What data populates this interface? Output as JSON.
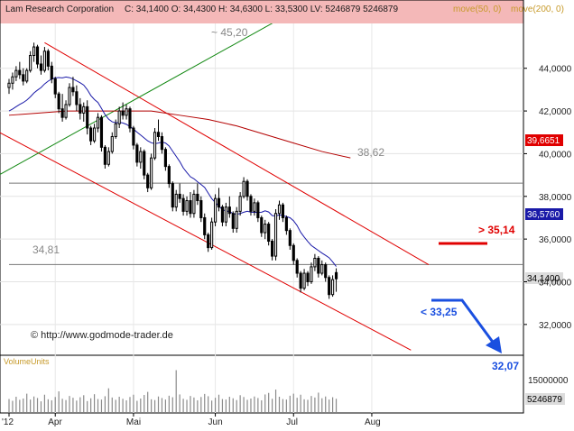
{
  "header": {
    "title": "Lam Research Corporation",
    "quote": "C: 34,1400  O: 34,4300  H: 34,6300  L: 33,5300  LV: 5246879  5246879",
    "ma_labels": [
      "move(50, 0)",
      "move(200, 0)"
    ]
  },
  "volume_panel": {
    "title": "VolumeUnits",
    "tick_label": "15000000",
    "last_volume_label": "5246879"
  },
  "annotations": {
    "peak": "~ 45,20",
    "resistance_h": "38,62",
    "support_h": "34,81",
    "breakout": "> 35,14",
    "breakdown": "< 33,25",
    "target": "32,07",
    "copyright": "© http://www.godmode-trader.de"
  },
  "colors": {
    "candle": "#000000",
    "ma50": "#1a1aa8",
    "ma200": "#b30000",
    "channel": "#e00000",
    "uptrend": "#118811",
    "hline": "#777777",
    "breakout_mark": "#e00000",
    "arrow": "#1a4fe0",
    "header_bg": "#f4b8b8"
  },
  "chart_data": {
    "type": "candlestick",
    "symbol": "Lam Research Corporation",
    "last": {
      "close": 34.14,
      "open": 34.43,
      "high": 34.63,
      "low": 33.53,
      "volume": 5246879
    },
    "y_axis": {
      "ticks": [
        32,
        34,
        36,
        38,
        40,
        42,
        44
      ],
      "tick_labels": [
        "32,0000",
        "34,0000",
        "36,0000",
        "38,0000",
        "40,0000",
        "42,0000",
        "44,0000"
      ],
      "ylim": [
        30.6,
        46.1
      ]
    },
    "x_axis": {
      "labels": [
        "'12",
        "Apr",
        "Mai",
        "Jun",
        "Jul",
        "Aug"
      ],
      "label_bar": [
        0,
        13,
        35,
        58,
        80,
        102
      ],
      "bar_range": [
        0,
        118
      ]
    },
    "candles": [
      [
        43.1,
        43.5,
        42.8,
        43.3
      ],
      [
        43.3,
        43.8,
        43.0,
        43.6
      ],
      [
        43.6,
        44.1,
        43.4,
        43.9
      ],
      [
        43.9,
        44.3,
        43.5,
        43.7
      ],
      [
        43.7,
        44.0,
        43.2,
        43.4
      ],
      [
        43.4,
        44.0,
        43.3,
        43.9
      ],
      [
        43.9,
        44.8,
        43.8,
        44.6
      ],
      [
        44.6,
        45.2,
        44.3,
        45.0
      ],
      [
        45.0,
        45.1,
        44.0,
        44.2
      ],
      [
        44.2,
        44.6,
        43.7,
        43.9
      ],
      [
        43.9,
        45.0,
        43.8,
        44.8
      ],
      [
        44.8,
        44.9,
        43.9,
        44.1
      ],
      [
        44.1,
        44.3,
        43.3,
        43.5
      ],
      [
        43.5,
        43.6,
        42.6,
        42.8
      ],
      [
        42.8,
        42.9,
        41.9,
        42.1
      ],
      [
        42.1,
        42.8,
        41.5,
        41.7
      ],
      [
        41.7,
        42.5,
        41.6,
        42.3
      ],
      [
        42.3,
        43.3,
        42.2,
        43.1
      ],
      [
        43.1,
        43.6,
        42.7,
        42.9
      ],
      [
        42.9,
        43.2,
        42.0,
        42.3
      ],
      [
        42.3,
        42.6,
        41.6,
        41.9
      ],
      [
        41.9,
        42.4,
        41.5,
        42.2
      ],
      [
        42.2,
        42.5,
        40.9,
        41.2
      ],
      [
        41.2,
        41.3,
        40.4,
        40.6
      ],
      [
        40.6,
        41.4,
        40.5,
        41.2
      ],
      [
        41.2,
        41.9,
        41.0,
        41.7
      ],
      [
        41.7,
        41.8,
        40.1,
        40.3
      ],
      [
        40.3,
        40.4,
        39.3,
        39.5
      ],
      [
        39.5,
        40.3,
        39.4,
        40.1
      ],
      [
        40.1,
        41.0,
        40.0,
        40.8
      ],
      [
        40.8,
        41.6,
        40.7,
        41.4
      ],
      [
        41.4,
        42.2,
        41.2,
        42.0
      ],
      [
        42.0,
        42.4,
        41.6,
        41.8
      ],
      [
        41.8,
        42.3,
        41.6,
        42.1
      ],
      [
        42.1,
        42.2,
        41.0,
        41.2
      ],
      [
        41.2,
        41.3,
        40.2,
        40.4
      ],
      [
        40.4,
        40.5,
        39.4,
        39.6
      ],
      [
        39.6,
        40.3,
        39.3,
        40.1
      ],
      [
        40.1,
        40.2,
        38.8,
        39.0
      ],
      [
        39.0,
        39.1,
        38.2,
        38.4
      ],
      [
        38.4,
        40.0,
        38.3,
        39.8
      ],
      [
        39.8,
        41.2,
        39.7,
        41.0
      ],
      [
        41.0,
        41.6,
        40.6,
        40.8
      ],
      [
        40.8,
        41.0,
        40.0,
        40.2
      ],
      [
        40.2,
        40.3,
        39.2,
        39.4
      ],
      [
        39.4,
        39.5,
        38.4,
        38.6
      ],
      [
        38.6,
        38.7,
        37.3,
        37.5
      ],
      [
        37.5,
        38.3,
        37.3,
        38.1
      ],
      [
        38.1,
        38.6,
        37.7,
        37.9
      ],
      [
        37.9,
        38.1,
        37.1,
        37.3
      ],
      [
        37.3,
        38.0,
        37.1,
        37.8
      ],
      [
        37.8,
        38.2,
        37.0,
        37.2
      ],
      [
        37.2,
        38.3,
        37.0,
        38.1
      ],
      [
        38.1,
        38.6,
        37.6,
        37.8
      ],
      [
        37.8,
        38.0,
        36.8,
        37.0
      ],
      [
        37.0,
        37.2,
        36.0,
        36.2
      ],
      [
        36.2,
        36.3,
        35.4,
        35.6
      ],
      [
        35.6,
        37.0,
        35.5,
        36.8
      ],
      [
        36.8,
        38.1,
        36.6,
        37.9
      ],
      [
        37.9,
        38.4,
        37.3,
        37.5
      ],
      [
        37.5,
        37.6,
        36.6,
        36.8
      ],
      [
        36.8,
        37.7,
        36.6,
        37.5
      ],
      [
        37.5,
        38.0,
        37.0,
        37.2
      ],
      [
        37.2,
        37.3,
        36.3,
        36.5
      ],
      [
        36.5,
        37.5,
        36.3,
        37.3
      ],
      [
        37.3,
        38.2,
        37.1,
        38.0
      ],
      [
        38.0,
        38.9,
        37.9,
        38.7
      ],
      [
        38.7,
        38.8,
        37.8,
        38.0
      ],
      [
        38.0,
        38.1,
        37.1,
        37.3
      ],
      [
        37.3,
        37.9,
        37.1,
        37.7
      ],
      [
        37.7,
        37.8,
        36.8,
        37.0
      ],
      [
        37.0,
        37.1,
        36.1,
        36.3
      ],
      [
        36.3,
        36.9,
        36.0,
        36.7
      ],
      [
        36.7,
        36.8,
        35.7,
        35.9
      ],
      [
        35.9,
        36.0,
        35.0,
        35.2
      ],
      [
        35.2,
        37.4,
        35.0,
        37.2
      ],
      [
        37.2,
        37.8,
        36.9,
        37.6
      ],
      [
        37.6,
        37.7,
        36.8,
        37.0
      ],
      [
        37.0,
        37.1,
        36.2,
        36.4
      ],
      [
        36.4,
        36.5,
        35.5,
        35.7
      ],
      [
        35.7,
        35.8,
        34.8,
        35.0
      ],
      [
        35.0,
        35.1,
        34.2,
        34.4
      ],
      [
        34.4,
        34.5,
        33.5,
        33.7
      ],
      [
        33.7,
        34.6,
        33.6,
        34.4
      ],
      [
        34.4,
        34.5,
        33.8,
        34.0
      ],
      [
        34.0,
        34.9,
        33.9,
        34.7
      ],
      [
        34.7,
        35.3,
        34.5,
        35.1
      ],
      [
        35.1,
        35.2,
        34.2,
        34.4
      ],
      [
        34.4,
        35.0,
        34.3,
        34.8
      ],
      [
        34.8,
        34.9,
        34.0,
        34.2
      ],
      [
        34.2,
        34.3,
        33.2,
        33.4
      ],
      [
        33.4,
        34.3,
        33.3,
        34.1
      ],
      [
        34.43,
        34.63,
        33.53,
        34.14
      ]
    ],
    "volume": [
      5.1,
      4.4,
      6.0,
      4.8,
      5.3,
      7.2,
      4.9,
      6.1,
      5.5,
      4.2,
      6.8,
      5.0,
      4.6,
      5.9,
      8.1,
      5.2,
      4.7,
      6.3,
      5.6,
      4.5,
      5.8,
      6.6,
      4.3,
      5.4,
      7.0,
      5.1,
      4.9,
      6.2,
      9.3,
      5.7,
      4.8,
      6.0,
      5.2,
      4.6,
      5.9,
      6.8,
      4.4,
      5.3,
      6.7,
      7.9,
      5.0,
      4.7,
      6.1,
      5.5,
      4.9,
      6.4,
      5.8,
      16.4,
      6.9,
      5.2,
      4.8,
      6.3,
      5.7,
      4.6,
      5.9,
      7.1,
      6.2,
      4.5,
      5.6,
      6.8,
      5.1,
      4.9,
      6.0,
      5.4,
      4.7,
      6.6,
      5.9,
      4.8,
      5.3,
      6.1,
      5.5,
      4.6,
      6.9,
      7.5,
      5.2,
      8.8,
      6.0,
      5.1,
      4.9,
      6.4,
      7.2,
      5.6,
      6.8,
      5.0,
      4.8,
      6.3,
      5.7,
      7.6,
      5.4,
      6.1,
      4.9,
      5.8,
      5.2
    ]
  }
}
